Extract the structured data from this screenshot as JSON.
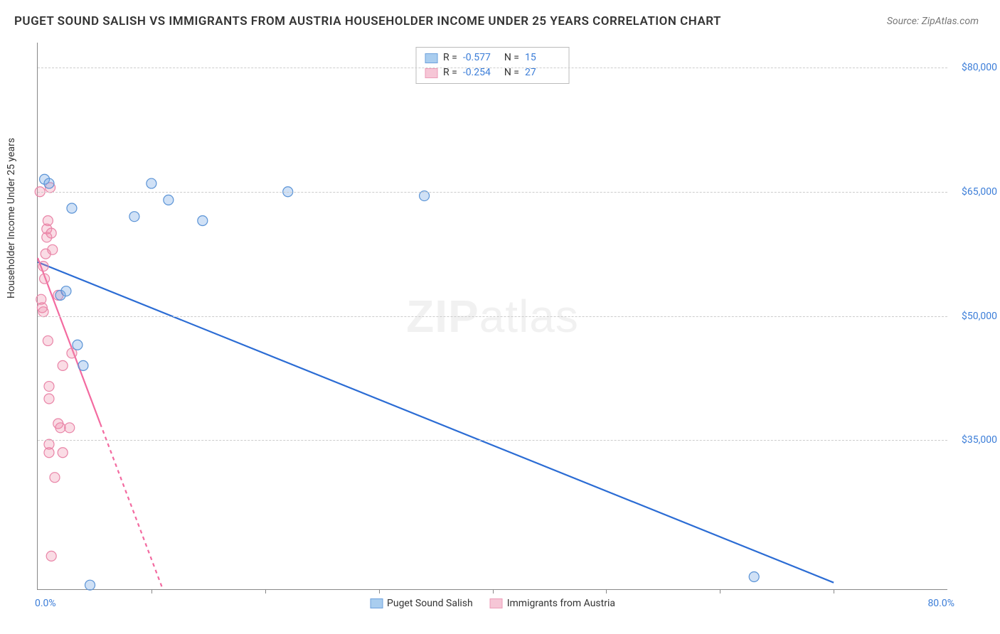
{
  "title": "PUGET SOUND SALISH VS IMMIGRANTS FROM AUSTRIA HOUSEHOLDER INCOME UNDER 25 YEARS CORRELATION CHART",
  "source": "Source: ZipAtlas.com",
  "watermark_bold": "ZIP",
  "watermark_light": "atlas",
  "chart": {
    "type": "scatter",
    "y_axis_label": "Householder Income Under 25 years",
    "background_color": "#ffffff",
    "grid_color": "#cccccc",
    "axis_color": "#888888",
    "x_min": 0.0,
    "x_max": 80.0,
    "y_min": 17000,
    "y_max": 83000,
    "y_ticks": [
      35000,
      50000,
      65000,
      80000
    ],
    "y_tick_labels": [
      "$35,000",
      "$50,000",
      "$65,000",
      "$80,000"
    ],
    "x_range_labels": {
      "min": "0.0%",
      "max": "80.0%"
    },
    "x_minor_ticks": [
      10,
      20,
      30,
      40,
      50,
      60,
      70
    ],
    "tick_label_color": "#3b7dd8",
    "marker_radius": 7,
    "marker_stroke_width": 1.2,
    "series": [
      {
        "name": "Puget Sound Salish",
        "fill": "rgba(120,170,230,0.35)",
        "stroke": "#5a93d6",
        "swatch_fill": "#a9cdef",
        "swatch_border": "#6da1dc",
        "R": "-0.577",
        "N": "15",
        "regression": {
          "color": "#2b6cd4",
          "width": 2.2,
          "solid_range": [
            0,
            70
          ],
          "x1": 0,
          "y1": 56500,
          "x2": 70,
          "y2": 17800
        },
        "points": [
          {
            "x": 0.6,
            "y": 66500
          },
          {
            "x": 1.0,
            "y": 66000
          },
          {
            "x": 2.0,
            "y": 52500
          },
          {
            "x": 2.5,
            "y": 53000
          },
          {
            "x": 3.0,
            "y": 63000
          },
          {
            "x": 3.5,
            "y": 46500
          },
          {
            "x": 4.0,
            "y": 44000
          },
          {
            "x": 4.6,
            "y": 17500
          },
          {
            "x": 8.5,
            "y": 62000
          },
          {
            "x": 10.0,
            "y": 66000
          },
          {
            "x": 11.5,
            "y": 64000
          },
          {
            "x": 14.5,
            "y": 61500
          },
          {
            "x": 22.0,
            "y": 65000
          },
          {
            "x": 34.0,
            "y": 64500
          },
          {
            "x": 63.0,
            "y": 18500
          }
        ]
      },
      {
        "name": "Immigrants from Austria",
        "fill": "rgba(240,140,170,0.30)",
        "stroke": "#e984a7",
        "swatch_fill": "#f6c6d6",
        "swatch_border": "#ec9cb8",
        "R": "-0.254",
        "N": "27",
        "regression": {
          "color": "#f36aa0",
          "width": 2.2,
          "solid_range": [
            0,
            5.5
          ],
          "dash": "5,5",
          "x1": 0,
          "y1": 57000,
          "x2": 11,
          "y2": 17000
        },
        "points": [
          {
            "x": 0.2,
            "y": 65000
          },
          {
            "x": 0.3,
            "y": 52000
          },
          {
            "x": 0.4,
            "y": 51000
          },
          {
            "x": 0.5,
            "y": 50500
          },
          {
            "x": 0.5,
            "y": 56000
          },
          {
            "x": 0.6,
            "y": 54500
          },
          {
            "x": 0.7,
            "y": 57500
          },
          {
            "x": 0.8,
            "y": 59500
          },
          {
            "x": 0.8,
            "y": 60500
          },
          {
            "x": 0.9,
            "y": 61500
          },
          {
            "x": 0.9,
            "y": 47000
          },
          {
            "x": 1.0,
            "y": 41500
          },
          {
            "x": 1.0,
            "y": 40000
          },
          {
            "x": 1.0,
            "y": 34500
          },
          {
            "x": 1.0,
            "y": 33500
          },
          {
            "x": 1.1,
            "y": 65500
          },
          {
            "x": 1.2,
            "y": 60000
          },
          {
            "x": 1.2,
            "y": 21000
          },
          {
            "x": 1.3,
            "y": 58000
          },
          {
            "x": 1.5,
            "y": 30500
          },
          {
            "x": 1.8,
            "y": 37000
          },
          {
            "x": 1.8,
            "y": 52500
          },
          {
            "x": 2.0,
            "y": 36500
          },
          {
            "x": 2.2,
            "y": 33500
          },
          {
            "x": 2.2,
            "y": 44000
          },
          {
            "x": 2.8,
            "y": 36500
          },
          {
            "x": 3.0,
            "y": 45500
          }
        ]
      }
    ],
    "legend_labels": {
      "R": "R =",
      "N": "N ="
    }
  }
}
